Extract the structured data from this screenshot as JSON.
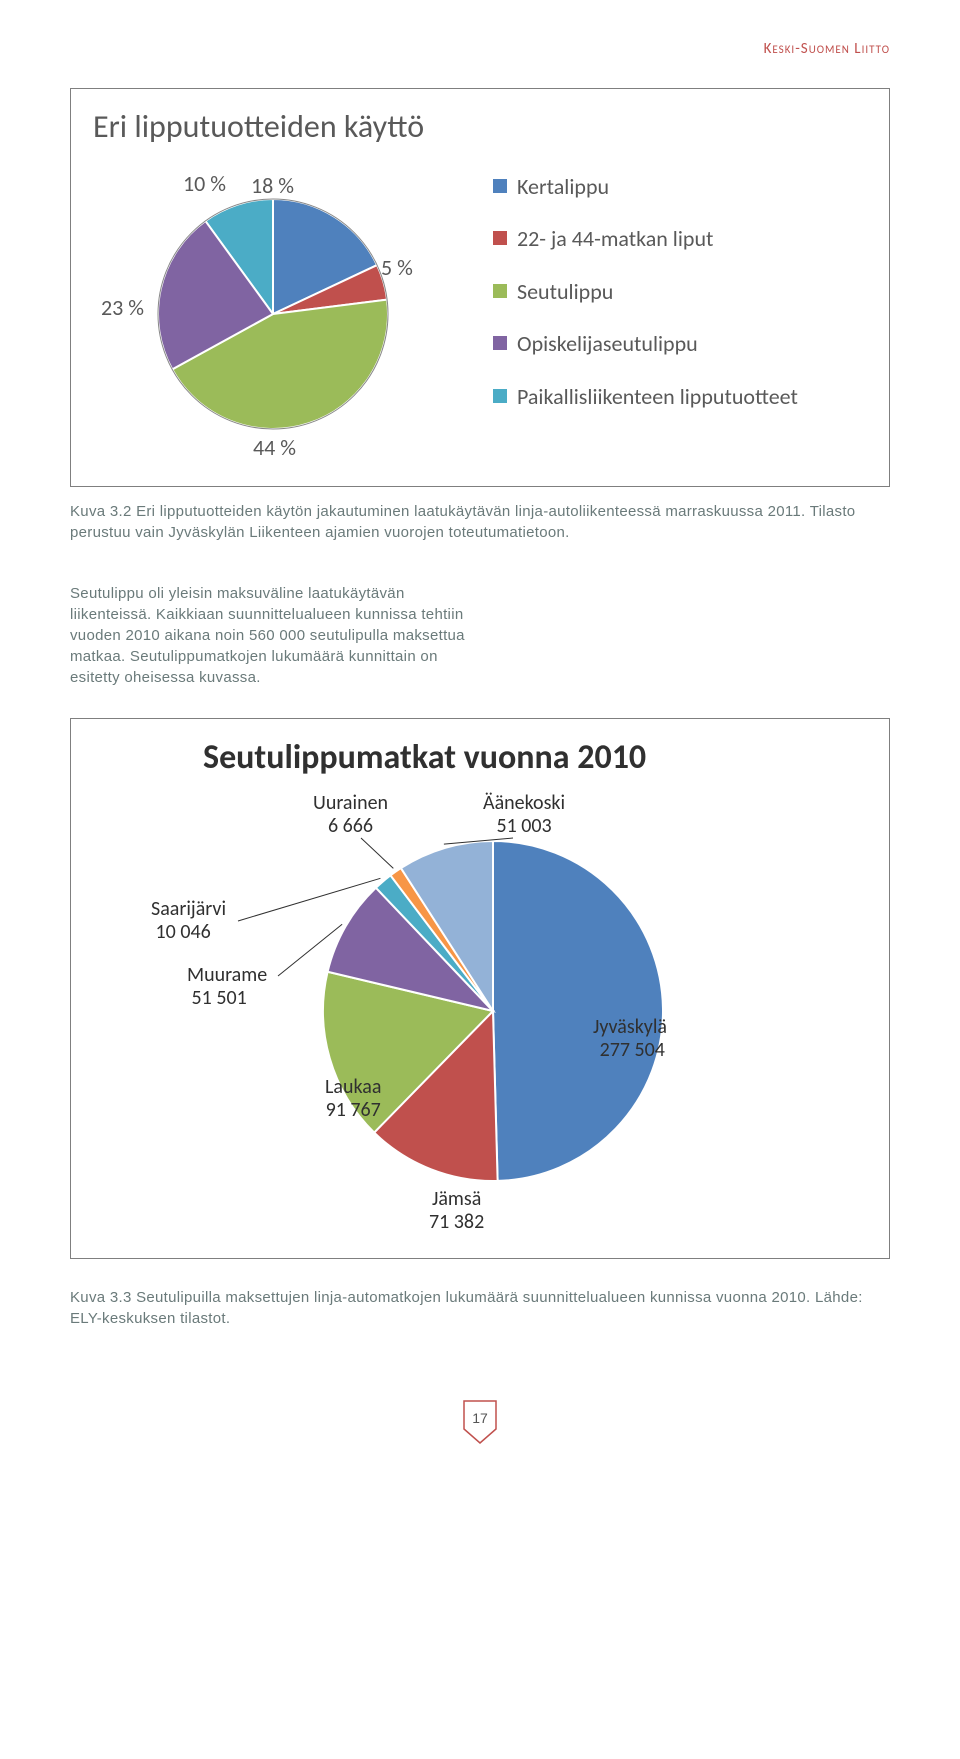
{
  "header": {
    "org": "Keski-Suomen Liitto"
  },
  "chart1": {
    "title": "Eri lipputuotteiden käyttö",
    "type": "pie",
    "slices": [
      {
        "label": "Kertalippu",
        "pct": 18,
        "color": "#4f81bd",
        "text": "18 %"
      },
      {
        "label": "22- ja 44-matkan liput",
        "pct": 5,
        "color": "#c0504d",
        "text": "5 %"
      },
      {
        "label": "Seutulippu",
        "pct": 44,
        "color": "#9bbb59",
        "text": "44 %"
      },
      {
        "label": "Opiskelijaseutulippu",
        "pct": 23,
        "color": "#8064a2",
        "text": "23 %"
      },
      {
        "label": "Paikallisliikenteen lipputuotteet",
        "pct": 10,
        "color": "#4bacc6",
        "text": "10 %"
      }
    ],
    "legend": [
      {
        "label": "Kertalippu",
        "color": "#4f81bd"
      },
      {
        "label": "22- ja 44-matkan liput",
        "color": "#c0504d"
      },
      {
        "label": "Seutulippu",
        "color": "#9bbb59"
      },
      {
        "label": "Opiskelijaseutulippu",
        "color": "#8064a2"
      },
      {
        "label": "Paikallisliikenteen lipputuotteet",
        "color": "#4bacc6"
      }
    ],
    "caption": "Kuva 3.2 Eri lipputuotteiden käytön jakautuminen laatukäytävän linja-autoliikenteessä marraskuussa 2011. Tilasto perustuu vain Jyväskylän Liikenteen ajamien vuorojen toteutumatietoon.",
    "outline_stroke": "#ffffff",
    "pie_border": "#888888"
  },
  "body_paragraph": "Seutulippu oli yleisin maksuväline laatukäytävän liikenteissä. Kaikkiaan suunnittelualueen kunnissa tehtiin vuoden 2010 aikana noin 560 000 seutulipulla maksettua matkaa. Seutulippumatkojen lukumäärä kunnittain on esitetty oheisessa kuvassa.",
  "chart2": {
    "title": "Seutulippumatkat  vuonna 2010",
    "type": "pie",
    "outline_stroke": "#ffffff",
    "slices": [
      {
        "name": "Jyväskylä",
        "value": 277504,
        "color": "#4f81bd",
        "label_l1": "Jyväskylä",
        "label_l2": "277 504"
      },
      {
        "name": "Jämsä",
        "value": 71382,
        "color": "#c0504d",
        "label_l1": "Jämsä",
        "label_l2": "71 382"
      },
      {
        "name": "Laukaa",
        "value": 91767,
        "color": "#9bbb59",
        "label_l1": "Laukaa",
        "label_l2": "91 767"
      },
      {
        "name": "Muurame",
        "value": 51501,
        "color": "#8064a2",
        "label_l1": "Muurame",
        "label_l2": "51 501"
      },
      {
        "name": "Saarijärvi",
        "value": 10046,
        "color": "#4bacc6",
        "label_l1": "Saarijärvi",
        "label_l2": "10 046"
      },
      {
        "name": "Uurainen",
        "value": 6666,
        "color": "#f79646",
        "label_l1": "Uurainen",
        "label_l2": "6 666"
      },
      {
        "name": "Äänekoski",
        "value": 51003,
        "color": "#93b2d7",
        "label_l1": "Äänekoski",
        "label_l2": "51 003"
      }
    ]
  },
  "footer_caption": "Kuva 3.3 Seutulipuilla maksettujen linja-automatkojen lukumäärä suunnittelualueen kunnissa vuonna 2010. Lähde: ELY-keskuksen tilastot.",
  "page_number": "17",
  "page_num_stroke": "#c0504d"
}
